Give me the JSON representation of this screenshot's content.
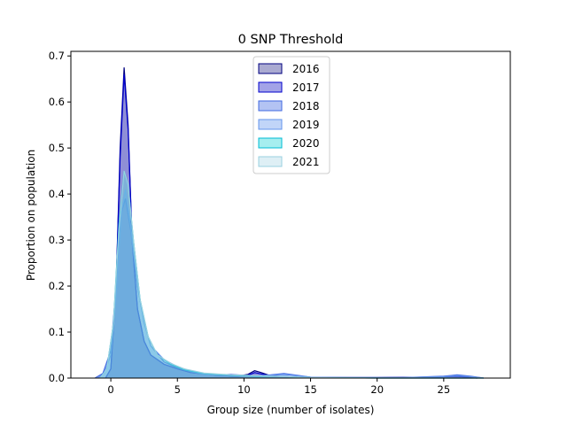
{
  "chart_data": {
    "type": "area",
    "title": "0 SNP Threshold",
    "xlabel": "Group size (number of isolates)",
    "ylabel": "Proportion on population",
    "xlim": [
      -3,
      30
    ],
    "ylim": [
      0,
      0.71
    ],
    "xticks": [
      0,
      5,
      10,
      15,
      20,
      25
    ],
    "yticks": [
      0.0,
      0.1,
      0.2,
      0.3,
      0.4,
      0.5,
      0.6,
      0.7
    ],
    "legend_position": "top-center",
    "series": [
      {
        "name": "2016",
        "fill": "#0b0b7a",
        "stroke": "#000080",
        "fill_opacity": 0.25,
        "points": [
          [
            -0.4,
            0
          ],
          [
            0,
            0.02
          ],
          [
            0.4,
            0.2
          ],
          [
            0.7,
            0.5
          ],
          [
            1.0,
            0.675
          ],
          [
            1.3,
            0.55
          ],
          [
            1.6,
            0.3
          ],
          [
            2.0,
            0.15
          ],
          [
            2.5,
            0.08
          ],
          [
            3,
            0.05
          ],
          [
            4,
            0.03
          ],
          [
            5,
            0.02
          ],
          [
            6,
            0.012
          ],
          [
            8,
            0.006
          ],
          [
            9.5,
            0.004
          ],
          [
            10.3,
            0.008
          ],
          [
            10.8,
            0.016
          ],
          [
            11.3,
            0.012
          ],
          [
            12,
            0.005
          ],
          [
            13,
            0.003
          ],
          [
            14,
            0.002
          ],
          [
            16,
            0.001
          ],
          [
            20,
            0.001
          ],
          [
            24,
            0.002
          ],
          [
            26,
            0.004
          ],
          [
            27.5,
            0
          ]
        ]
      },
      {
        "name": "2017",
        "fill": "#1a1ac4",
        "stroke": "#0000cd",
        "fill_opacity": 0.3,
        "points": [
          [
            -0.4,
            0
          ],
          [
            0,
            0.02
          ],
          [
            0.4,
            0.2
          ],
          [
            0.7,
            0.48
          ],
          [
            1.0,
            0.66
          ],
          [
            1.3,
            0.54
          ],
          [
            1.6,
            0.3
          ],
          [
            2.0,
            0.15
          ],
          [
            2.5,
            0.08
          ],
          [
            3,
            0.05
          ],
          [
            4,
            0.03
          ],
          [
            5,
            0.02
          ],
          [
            6,
            0.012
          ],
          [
            8,
            0.006
          ],
          [
            9.5,
            0.004
          ],
          [
            10.3,
            0.006
          ],
          [
            10.8,
            0.012
          ],
          [
            11.3,
            0.009
          ],
          [
            12,
            0.004
          ],
          [
            13,
            0.003
          ],
          [
            14,
            0.002
          ],
          [
            16,
            0.001
          ],
          [
            20,
            0.001
          ],
          [
            24,
            0.002
          ],
          [
            26,
            0.004
          ],
          [
            27.5,
            0
          ]
        ]
      },
      {
        "name": "2018",
        "fill": "#4169e1",
        "stroke": "#4169e1",
        "fill_opacity": 0.3,
        "points": [
          [
            -1.2,
            0
          ],
          [
            -0.6,
            0.01
          ],
          [
            0,
            0.06
          ],
          [
            0.4,
            0.2
          ],
          [
            0.8,
            0.36
          ],
          [
            1.1,
            0.39
          ],
          [
            1.5,
            0.32
          ],
          [
            2,
            0.2
          ],
          [
            2.5,
            0.12
          ],
          [
            3,
            0.07
          ],
          [
            4,
            0.035
          ],
          [
            5,
            0.022
          ],
          [
            6,
            0.014
          ],
          [
            7,
            0.008
          ],
          [
            8,
            0.007
          ],
          [
            9,
            0.008
          ],
          [
            10,
            0.006
          ],
          [
            11,
            0.005
          ],
          [
            12,
            0.007
          ],
          [
            13,
            0.01
          ],
          [
            14,
            0.006
          ],
          [
            15,
            0.002
          ],
          [
            18,
            0.001
          ],
          [
            22,
            0.001
          ],
          [
            25,
            0.004
          ],
          [
            26,
            0.007
          ],
          [
            27,
            0.004
          ],
          [
            28,
            0
          ]
        ]
      },
      {
        "name": "2019",
        "fill": "#6495ed",
        "stroke": "#6495ed",
        "fill_opacity": 0.3,
        "points": [
          [
            -1,
            0
          ],
          [
            -0.5,
            0.01
          ],
          [
            0,
            0.05
          ],
          [
            0.4,
            0.18
          ],
          [
            0.8,
            0.36
          ],
          [
            1.1,
            0.41
          ],
          [
            1.5,
            0.33
          ],
          [
            2,
            0.2
          ],
          [
            2.5,
            0.12
          ],
          [
            3,
            0.07
          ],
          [
            4,
            0.04
          ],
          [
            5,
            0.025
          ],
          [
            6,
            0.015
          ],
          [
            7,
            0.009
          ],
          [
            8,
            0.007
          ],
          [
            9,
            0.006
          ],
          [
            10,
            0.005
          ],
          [
            11,
            0.005
          ],
          [
            12,
            0.006
          ],
          [
            13,
            0.008
          ],
          [
            14,
            0.005
          ],
          [
            15,
            0.002
          ],
          [
            18,
            0.001
          ],
          [
            22,
            0.001
          ],
          [
            25,
            0.003
          ],
          [
            26,
            0.005
          ],
          [
            27,
            0.003
          ],
          [
            28,
            0
          ]
        ]
      },
      {
        "name": "2020",
        "fill": "#00ced1",
        "stroke": "#00bcd4",
        "fill_opacity": 0.25,
        "points": [
          [
            -0.8,
            0
          ],
          [
            -0.3,
            0.02
          ],
          [
            0.2,
            0.12
          ],
          [
            0.6,
            0.33
          ],
          [
            1.0,
            0.45
          ],
          [
            1.3,
            0.42
          ],
          [
            1.7,
            0.3
          ],
          [
            2.2,
            0.17
          ],
          [
            2.8,
            0.09
          ],
          [
            3.5,
            0.05
          ],
          [
            4.5,
            0.03
          ],
          [
            5.5,
            0.018
          ],
          [
            7,
            0.01
          ],
          [
            9,
            0.006
          ],
          [
            11,
            0.004
          ],
          [
            13,
            0.003
          ],
          [
            15,
            0.001
          ],
          [
            20,
            0.0
          ],
          [
            28,
            0
          ]
        ]
      },
      {
        "name": "2021",
        "fill": "#add8e6",
        "stroke": "#9ad0e0",
        "fill_opacity": 0.3,
        "points": [
          [
            -0.8,
            0
          ],
          [
            -0.3,
            0.02
          ],
          [
            0.2,
            0.12
          ],
          [
            0.6,
            0.32
          ],
          [
            1.0,
            0.45
          ],
          [
            1.3,
            0.42
          ],
          [
            1.7,
            0.3
          ],
          [
            2.2,
            0.17
          ],
          [
            2.8,
            0.09
          ],
          [
            3.5,
            0.05
          ],
          [
            4.5,
            0.032
          ],
          [
            5.5,
            0.02
          ],
          [
            7,
            0.011
          ],
          [
            9,
            0.007
          ],
          [
            11,
            0.005
          ],
          [
            13,
            0.003
          ],
          [
            15,
            0.001
          ],
          [
            20,
            0.0
          ],
          [
            28,
            0
          ]
        ]
      }
    ]
  }
}
